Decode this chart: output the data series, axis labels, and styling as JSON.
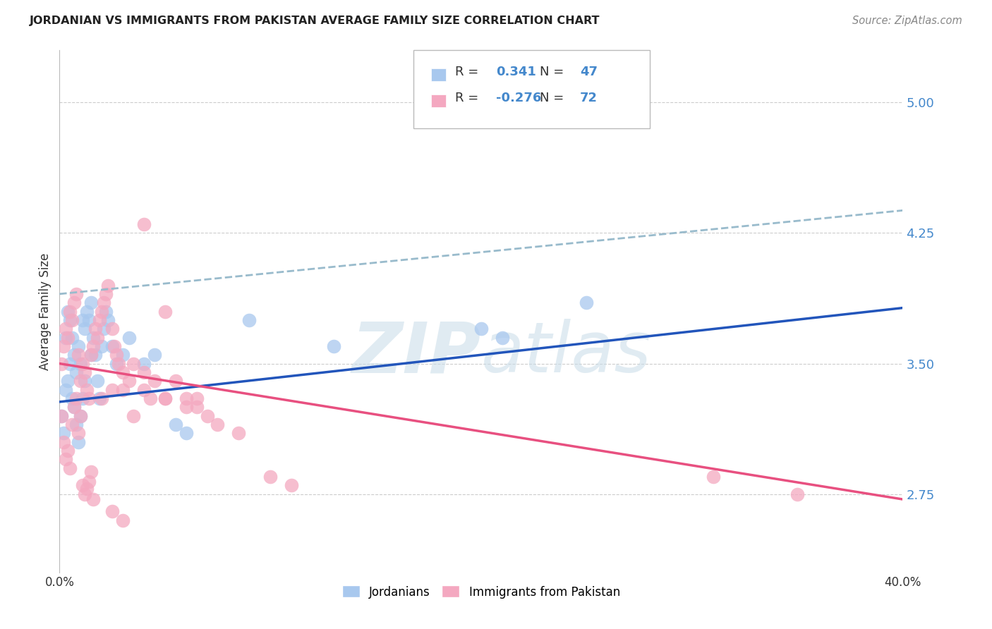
{
  "title": "JORDANIAN VS IMMIGRANTS FROM PAKISTAN AVERAGE FAMILY SIZE CORRELATION CHART",
  "source": "Source: ZipAtlas.com",
  "ylabel": "Average Family Size",
  "yticks": [
    2.75,
    3.5,
    4.25,
    5.0
  ],
  "ytick_labels": [
    "2.75",
    "3.50",
    "4.25",
    "5.00"
  ],
  "xlim": [
    0.0,
    0.4
  ],
  "ylim": [
    2.3,
    5.3
  ],
  "legend_blue_r": "0.341",
  "legend_blue_n": "47",
  "legend_pink_r": "-0.276",
  "legend_pink_n": "72",
  "blue_color": "#A8C8EE",
  "pink_color": "#F4A8C0",
  "blue_line_color": "#2255BB",
  "pink_line_color": "#E85080",
  "dashed_line_color": "#99BBCC",
  "ytick_color": "#4488CC",
  "watermark_color": "#C8DCE8",
  "background_color": "#FFFFFF",
  "grid_color": "#CCCCCC",
  "blue_trendline_x0": 0.0,
  "blue_trendline_x1": 0.4,
  "blue_trendline_y0": 3.28,
  "blue_trendline_y1": 3.82,
  "pink_trendline_x0": 0.0,
  "pink_trendline_x1": 0.4,
  "pink_trendline_y0": 3.5,
  "pink_trendline_y1": 2.72,
  "dashed_trendline_x0": 0.0,
  "dashed_trendline_x1": 0.4,
  "dashed_trendline_y0": 3.9,
  "dashed_trendline_y1": 4.38,
  "blue_x": [
    0.001,
    0.002,
    0.003,
    0.003,
    0.004,
    0.004,
    0.005,
    0.005,
    0.006,
    0.006,
    0.007,
    0.007,
    0.008,
    0.008,
    0.009,
    0.009,
    0.01,
    0.01,
    0.011,
    0.011,
    0.012,
    0.012,
    0.013,
    0.014,
    0.015,
    0.015,
    0.016,
    0.017,
    0.018,
    0.019,
    0.02,
    0.021,
    0.022,
    0.023,
    0.025,
    0.027,
    0.03,
    0.033,
    0.04,
    0.045,
    0.055,
    0.06,
    0.09,
    0.13,
    0.2,
    0.21,
    0.25
  ],
  "blue_y": [
    3.2,
    3.1,
    3.35,
    3.65,
    3.4,
    3.8,
    3.5,
    3.75,
    3.3,
    3.65,
    3.25,
    3.55,
    3.15,
    3.45,
    3.05,
    3.6,
    3.5,
    3.2,
    3.75,
    3.3,
    3.7,
    3.4,
    3.8,
    3.75,
    3.85,
    3.55,
    3.65,
    3.55,
    3.4,
    3.3,
    3.6,
    3.7,
    3.8,
    3.75,
    3.6,
    3.5,
    3.55,
    3.65,
    3.5,
    3.55,
    3.15,
    3.1,
    3.75,
    3.6,
    3.7,
    3.65,
    3.85
  ],
  "pink_x": [
    0.001,
    0.001,
    0.002,
    0.002,
    0.003,
    0.003,
    0.004,
    0.004,
    0.005,
    0.005,
    0.006,
    0.006,
    0.007,
    0.007,
    0.008,
    0.008,
    0.009,
    0.009,
    0.01,
    0.01,
    0.011,
    0.011,
    0.012,
    0.012,
    0.013,
    0.013,
    0.014,
    0.014,
    0.015,
    0.015,
    0.016,
    0.016,
    0.017,
    0.018,
    0.019,
    0.02,
    0.021,
    0.022,
    0.023,
    0.025,
    0.026,
    0.027,
    0.028,
    0.03,
    0.033,
    0.035,
    0.04,
    0.043,
    0.05,
    0.06,
    0.065,
    0.07,
    0.075,
    0.085,
    0.1,
    0.11,
    0.04,
    0.05,
    0.055,
    0.065,
    0.31,
    0.35,
    0.02,
    0.025,
    0.03,
    0.035,
    0.04,
    0.045,
    0.05,
    0.06,
    0.025,
    0.03
  ],
  "pink_y": [
    3.5,
    3.2,
    3.6,
    3.05,
    3.7,
    2.95,
    3.65,
    3.0,
    3.8,
    2.9,
    3.75,
    3.15,
    3.85,
    3.25,
    3.9,
    3.3,
    3.55,
    3.1,
    3.4,
    3.2,
    3.5,
    2.8,
    3.45,
    2.75,
    3.35,
    2.78,
    3.3,
    2.82,
    3.55,
    2.88,
    3.6,
    2.72,
    3.7,
    3.65,
    3.75,
    3.8,
    3.85,
    3.9,
    3.95,
    3.7,
    3.6,
    3.55,
    3.5,
    3.45,
    3.4,
    3.5,
    3.35,
    3.3,
    3.3,
    3.3,
    3.25,
    3.2,
    3.15,
    3.1,
    2.85,
    2.8,
    4.3,
    3.8,
    3.4,
    3.3,
    2.85,
    2.75,
    3.3,
    3.35,
    3.35,
    3.2,
    3.45,
    3.4,
    3.3,
    3.25,
    2.65,
    2.6
  ]
}
